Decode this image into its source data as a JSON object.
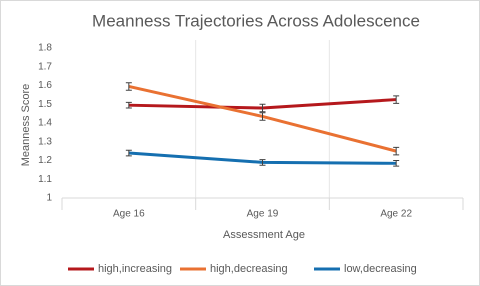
{
  "chart_data": {
    "type": "line",
    "title": "Meanness Trajectories Across Adolescence",
    "x_label": "Assessment Age",
    "y_label": "Meanness Score",
    "categories": [
      "Age 16",
      "Age 19",
      "Age 22"
    ],
    "ylim": [
      1,
      1.8
    ],
    "yticks": [
      1,
      1.1,
      1.2,
      1.3,
      1.4,
      1.5,
      1.6,
      1.7,
      1.8
    ],
    "series": [
      {
        "name": "high,increasing",
        "color": "#b5181c",
        "values": [
          1.495,
          1.48,
          1.525
        ],
        "errors": [
          0.015,
          0.02,
          0.02
        ]
      },
      {
        "name": "high,decreasing",
        "color": "#e97132",
        "values": [
          1.595,
          1.435,
          1.25
        ],
        "errors": [
          0.02,
          0.02,
          0.02
        ]
      },
      {
        "name": "low,decreasing",
        "color": "#156fb0",
        "values": [
          1.24,
          1.19,
          1.185
        ],
        "errors": [
          0.015,
          0.015,
          0.015
        ]
      }
    ]
  }
}
